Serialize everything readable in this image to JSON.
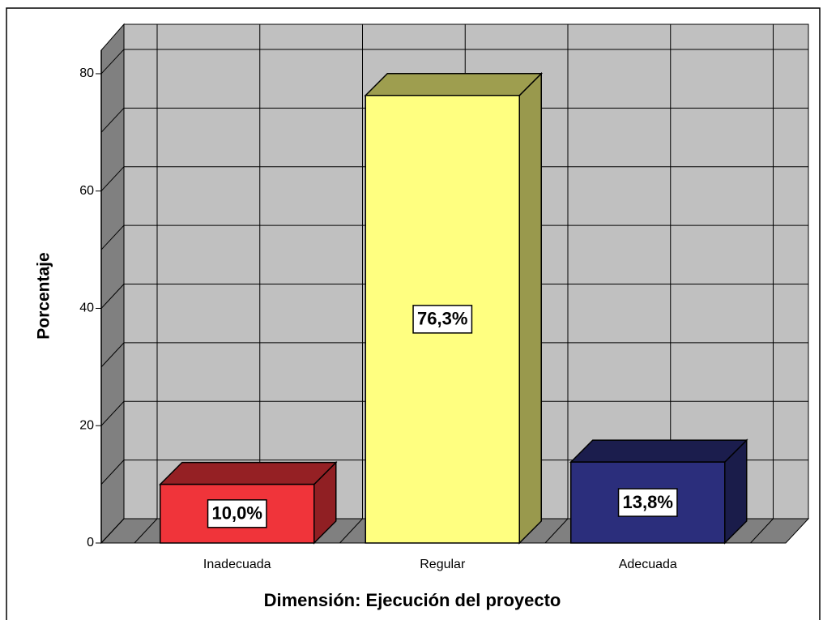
{
  "chart_data": {
    "type": "bar3d",
    "categories": [
      "Inadecuada",
      "Regular",
      "Adecuada"
    ],
    "values": [
      10.0,
      76.3,
      13.8
    ],
    "value_labels": [
      "10,0%",
      "76,3%",
      "13,8%"
    ],
    "colors": [
      "#f0343a",
      "#ffff80",
      "#2b2e7c"
    ],
    "x_label": "Dimensión: Ejecución del proyecto",
    "y_label": "Porcentaje",
    "ylim": [
      0,
      84
    ],
    "yticks": [
      0,
      20,
      40,
      60,
      80
    ],
    "minor_yticks": [
      10,
      30,
      50,
      70
    ],
    "grid": true
  }
}
